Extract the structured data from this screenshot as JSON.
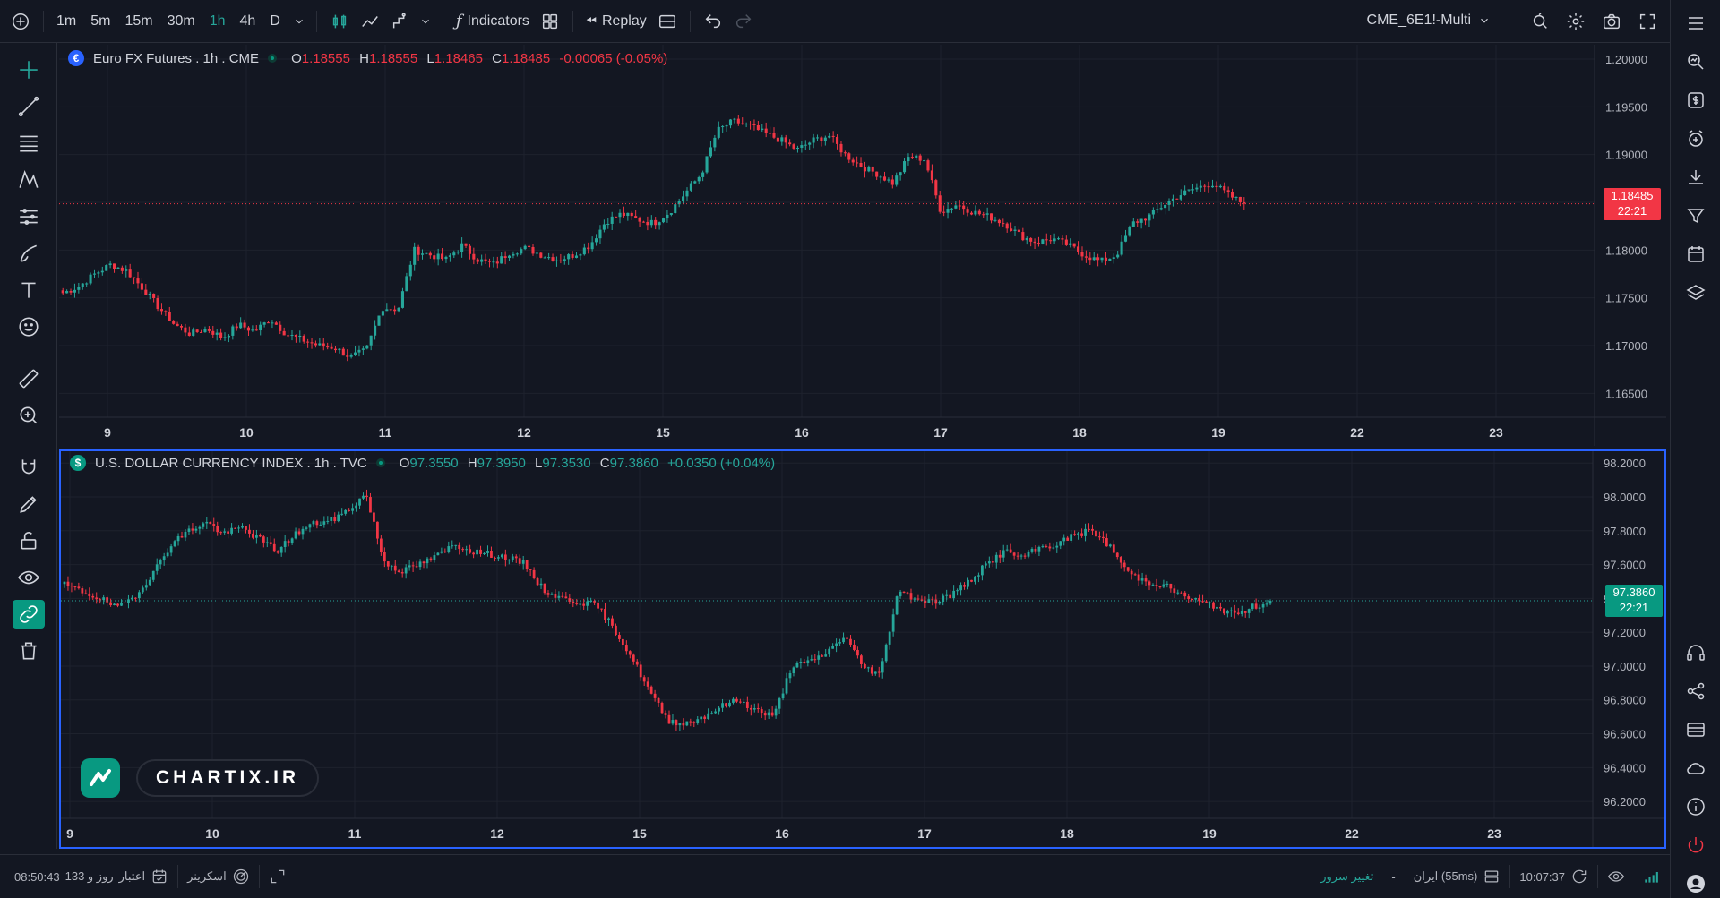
{
  "toolbar": {
    "intervals": [
      "1m",
      "5m",
      "15m",
      "30m",
      "1h",
      "4h",
      "D"
    ],
    "active_interval": "1h",
    "indicators_label": "Indicators",
    "replay_label": "Replay",
    "symbol": "CME_6E1!-Multi"
  },
  "top_pane": {
    "title": "Euro FX Futures . 1h . CME",
    "o_label": "O",
    "o": "1.18555",
    "h_label": "H",
    "h": "1.18555",
    "l_label": "L",
    "l": "1.18465",
    "c_label": "C",
    "c": "1.18485",
    "change": "-0.00065 (-0.05%)",
    "price_tag": "1.18485",
    "countdown": "22:21",
    "y_labels": [
      "1.20000",
      "1.19500",
      "1.19000",
      "1.18500",
      "1.18000",
      "1.17500",
      "1.17000",
      "1.16500"
    ],
    "x_labels": [
      "9",
      "10",
      "11",
      "12",
      "15",
      "16",
      "17",
      "18",
      "19",
      "22",
      "23"
    ]
  },
  "bottom_pane": {
    "title": "U.S. DOLLAR CURRENCY INDEX . 1h . TVC",
    "o_label": "O",
    "o": "97.3550",
    "h_label": "H",
    "h": "97.3950",
    "l_label": "L",
    "l": "97.3530",
    "c_label": "C",
    "c": "97.3860",
    "change": "+0.0350 (+0.04%)",
    "price_tag": "97.3860",
    "countdown": "22:21",
    "y_labels": [
      "98.2000",
      "98.0000",
      "97.8000",
      "97.6000",
      "97.4000",
      "97.2000",
      "97.0000",
      "96.8000",
      "96.6000",
      "96.4000",
      "96.2000"
    ],
    "x_labels": [
      "9",
      "10",
      "11",
      "12",
      "15",
      "16",
      "17",
      "18",
      "19",
      "22",
      "23"
    ]
  },
  "logo": {
    "text": "CHARTIX.IR"
  },
  "bottombar": {
    "time_credit": "08:50:43",
    "credit_days": "133 روز و",
    "credit_label": "اعتبار",
    "screener_label": "اسکرینر",
    "server_change": "تغییر سرور",
    "server_name": "ایران (55ms)",
    "clock": "10:07:37"
  },
  "colors": {
    "up": "#26a69a",
    "down": "#f23645",
    "accent": "#2962ff",
    "bg": "#131722"
  },
  "chart_data": [
    {
      "type": "candlestick",
      "title": "Euro FX Futures . 1h . CME",
      "ylim": [
        1.1625,
        1.2015
      ],
      "x_labels": [
        "9",
        "10",
        "11",
        "12",
        "15",
        "16",
        "17",
        "18",
        "19",
        "22",
        "23"
      ],
      "close_path": [
        1.1755,
        1.1762,
        1.1775,
        1.1785,
        1.1778,
        1.176,
        1.174,
        1.1722,
        1.1712,
        1.1718,
        1.1708,
        1.1722,
        1.1715,
        1.1728,
        1.1712,
        1.1706,
        1.17,
        1.1698,
        1.1688,
        1.1695,
        1.174,
        1.1738,
        1.18,
        1.1795,
        1.179,
        1.1805,
        1.179,
        1.1785,
        1.1798,
        1.1802,
        1.1795,
        1.179,
        1.1795,
        1.1805,
        1.183,
        1.1838,
        1.1832,
        1.1828,
        1.184,
        1.186,
        1.188,
        1.1925,
        1.1935,
        1.193,
        1.1922,
        1.1915,
        1.1905,
        1.1915,
        1.192,
        1.19,
        1.1888,
        1.188,
        1.187,
        1.1898,
        1.1895,
        1.184,
        1.1848,
        1.184,
        1.1835,
        1.1828,
        1.1815,
        1.1808,
        1.1812,
        1.1805,
        1.1795,
        1.1788,
        1.1795,
        1.1828,
        1.1835,
        1.1848,
        1.1858,
        1.1865,
        1.187,
        1.1858,
        1.1848
      ],
      "last_close": 1.18485
    },
    {
      "type": "candlestick",
      "title": "U.S. DOLLAR CURRENCY INDEX . 1h . TVC",
      "ylim": [
        96.1,
        98.27
      ],
      "x_labels": [
        "9",
        "10",
        "11",
        "12",
        "15",
        "16",
        "17",
        "18",
        "19",
        "22",
        "23"
      ],
      "close_path": [
        97.48,
        97.44,
        97.4,
        97.34,
        97.42,
        97.55,
        97.72,
        97.8,
        97.85,
        97.78,
        97.82,
        97.75,
        97.68,
        97.78,
        97.84,
        97.86,
        97.92,
        98.02,
        97.62,
        97.56,
        97.6,
        97.65,
        97.72,
        97.68,
        97.66,
        97.64,
        97.6,
        97.45,
        97.4,
        97.38,
        97.36,
        97.22,
        97.05,
        96.85,
        96.68,
        96.66,
        96.7,
        96.76,
        96.8,
        96.74,
        96.7,
        97.0,
        97.02,
        97.08,
        97.18,
        97.0,
        96.95,
        97.45,
        97.4,
        97.38,
        97.42,
        97.5,
        97.6,
        97.68,
        97.64,
        97.7,
        97.72,
        97.78,
        97.8,
        97.7,
        97.55,
        97.5,
        97.48,
        97.42,
        97.38,
        97.35,
        97.3,
        97.35,
        97.386
      ],
      "last_close": 97.386
    }
  ]
}
